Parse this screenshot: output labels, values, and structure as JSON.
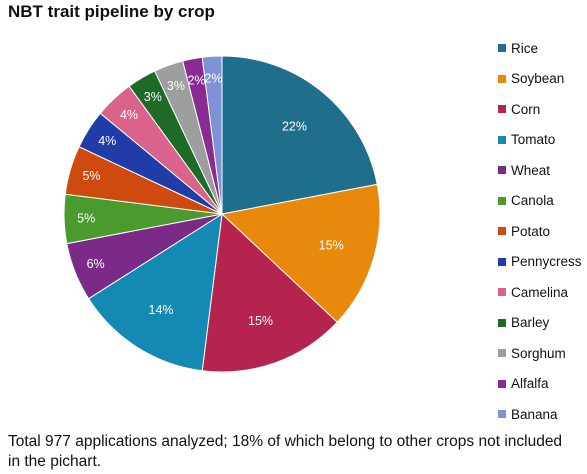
{
  "chart_data": {
    "type": "pie",
    "title": "NBT trait pipeline by crop",
    "start_angle_deg": 0,
    "direction": "clockwise",
    "slices": [
      {
        "label": "Rice",
        "value": 22,
        "value_label": "22%",
        "color": "#1f6e8c"
      },
      {
        "label": "Soybean",
        "value": 15,
        "value_label": "15%",
        "color": "#e8890c"
      },
      {
        "label": "Corn",
        "value": 15,
        "value_label": "15%",
        "color": "#b5234f"
      },
      {
        "label": "Tomato",
        "value": 14,
        "value_label": "14%",
        "color": "#1489b3"
      },
      {
        "label": "Wheat",
        "value": 6,
        "value_label": "6%",
        "color": "#7b2a87"
      },
      {
        "label": "Canola",
        "value": 5,
        "value_label": "5%",
        "color": "#4a9a2e"
      },
      {
        "label": "Potato",
        "value": 5,
        "value_label": "5%",
        "color": "#cf4a0e"
      },
      {
        "label": "Pennycress",
        "value": 4,
        "value_label": "4%",
        "color": "#1f3ca8"
      },
      {
        "label": "Camelina",
        "value": 4,
        "value_label": "4%",
        "color": "#d9638a"
      },
      {
        "label": "Barley",
        "value": 3,
        "value_label": "3%",
        "color": "#1e6a28"
      },
      {
        "label": "Sorghum",
        "value": 3,
        "value_label": "3%",
        "color": "#9e9e9e"
      },
      {
        "label": "Alfalfa",
        "value": 2,
        "value_label": "2%",
        "color": "#8a2a93"
      },
      {
        "label": "Banana",
        "value": 2,
        "value_label": "2%",
        "color": "#7f92d6"
      }
    ],
    "legend_position": "right"
  },
  "footnote": "Total 977 applications analyzed; 18% of which belong to other crops not included in the pichart."
}
